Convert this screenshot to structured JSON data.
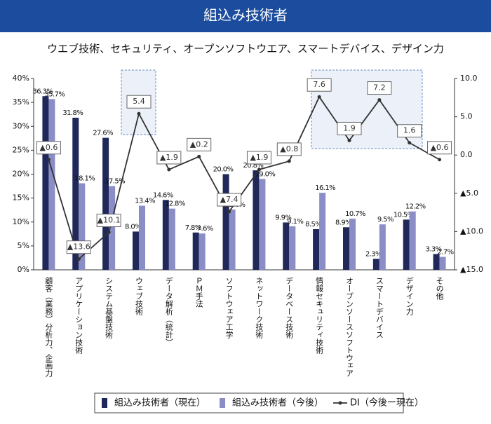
{
  "chart_data": {
    "type": "bar",
    "title": "組込み技術者",
    "subtitle": "ウエブ技術、セキュリティ、オープンソフトウエア、スマートデバイス、デザイン力",
    "categories": [
      "顧客（業務）分析力、企画力",
      "アプリケーション技術",
      "システム基盤技術",
      "ウェブ技術",
      "データ解析（統計）",
      "ＰＭ手法",
      "ソフトウェア工学",
      "ネットワーク技術",
      "データベース技術",
      "情報セキュリティ技術",
      "オープンソースソフトウェア",
      "スマートデバイス",
      "デザイン力",
      "その他"
    ],
    "series": [
      {
        "name": "組込み技術者（現在）",
        "type": "bar",
        "color": "#1f2858",
        "values": [
          36.3,
          31.8,
          27.6,
          8.0,
          14.6,
          7.8,
          20.0,
          20.8,
          9.9,
          8.5,
          8.9,
          2.3,
          10.5,
          3.3
        ],
        "value_labels": [
          "36.3%",
          "31.8%",
          "27.6%",
          "8.0%",
          "14.6%",
          "7.8%",
          "20.0%",
          "20.8%",
          "9.9%",
          "8.5%",
          "8.9%",
          "2.3%",
          "10.5%",
          "3.3%"
        ]
      },
      {
        "name": "組込み技術者（今後）",
        "type": "bar",
        "color": "#8b8ec6",
        "values": [
          35.7,
          18.1,
          17.5,
          13.4,
          12.8,
          7.6,
          12.6,
          19.0,
          9.1,
          16.1,
          10.7,
          9.5,
          12.2,
          2.7
        ],
        "value_labels": [
          "35.7%",
          "18.1%",
          "17.5%",
          "13.4%",
          "12.8%",
          "7.6%",
          "12.6%",
          "19.0%",
          "9.1%",
          "16.1%",
          "10.7%",
          "9.5%",
          "12.2%",
          "2.7%"
        ]
      },
      {
        "name": "DI（今後ー現在）",
        "type": "line",
        "axis": "y2",
        "color": "#333333",
        "values": [
          -0.6,
          -13.6,
          -10.1,
          5.4,
          -1.9,
          -0.2,
          -7.4,
          -1.9,
          -0.8,
          7.6,
          1.9,
          7.2,
          1.6,
          -0.6
        ],
        "value_labels": [
          "▲0.6",
          "▲13.6",
          "▲10.1",
          "5.4",
          "▲1.9",
          "▲0.2",
          "▲7.4",
          "▲1.9",
          "▲0.8",
          "7.6",
          "1.9",
          "7.2",
          "1.6",
          "▲0.6"
        ]
      }
    ],
    "ylim": [
      0,
      40
    ],
    "yticks": [
      {
        "value": 0,
        "label": "0%"
      },
      {
        "value": 5,
        "label": "5%"
      },
      {
        "value": 10,
        "label": "10%"
      },
      {
        "value": 15,
        "label": "15%"
      },
      {
        "value": 20,
        "label": "20%"
      },
      {
        "value": 25,
        "label": "25%"
      },
      {
        "value": 30,
        "label": "30%"
      },
      {
        "value": 35,
        "label": "35%"
      },
      {
        "value": 40,
        "label": "40%"
      }
    ],
    "y2lim": [
      -15,
      10
    ],
    "y2ticks": [
      {
        "value": 10,
        "label": "10.0"
      },
      {
        "value": 5,
        "label": "5.0"
      },
      {
        "value": 0,
        "label": "0.0"
      },
      {
        "value": -5,
        "label": "▲5.0"
      },
      {
        "value": -10,
        "label": "▲10.0"
      },
      {
        "value": -15,
        "label": "▲15.0"
      }
    ],
    "legend": "bottom",
    "grid": false
  }
}
